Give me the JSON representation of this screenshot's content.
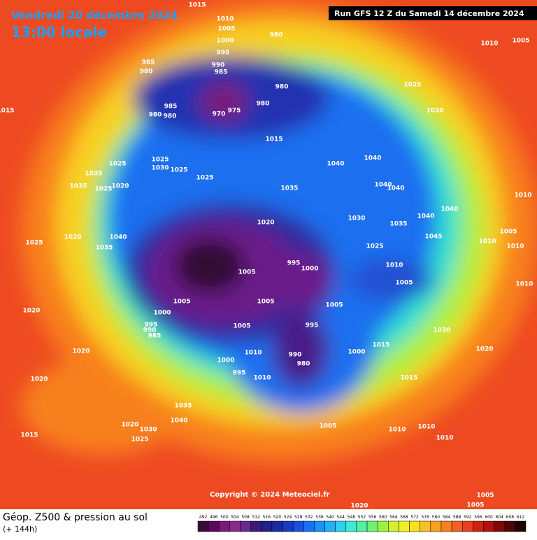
{
  "header": {
    "date": "Vendredi 20 décembre 2024",
    "time": "13:00 locale",
    "run": "Run GFS 12 Z du Samedi 14 décembre 2024"
  },
  "footer": {
    "title": "Géop. Z500 & pression au sol",
    "lead": "(+ 144h)",
    "copyright": "Copyright © 2024 Meteociel.fr"
  },
  "legend": {
    "values": [
      492,
      496,
      500,
      504,
      508,
      512,
      516,
      520,
      524,
      528,
      532,
      536,
      540,
      544,
      548,
      552,
      556,
      560,
      564,
      568,
      572,
      576,
      580,
      584,
      588,
      592,
      596,
      600,
      604,
      608,
      612
    ],
    "colors": [
      "#3a0a3a",
      "#5a0a5a",
      "#7a1a7a",
      "#8a2a8a",
      "#6a2a8a",
      "#3a1a7a",
      "#20208a",
      "#1a2aa0",
      "#1a3ac0",
      "#1a50e0",
      "#1a70f0",
      "#1a90f8",
      "#20b0f8",
      "#30d0f0",
      "#40e8d8",
      "#50f0a0",
      "#70f070",
      "#a0f040",
      "#d0f030",
      "#f0f020",
      "#f8e020",
      "#f8c020",
      "#f8a020",
      "#f88020",
      "#f06020",
      "#e84020",
      "#d02010",
      "#b01010",
      "#800808",
      "#500404",
      "#200000"
    ]
  },
  "isobars": [
    "1015",
    "1010",
    "1005",
    "1000",
    "995",
    "990",
    "985",
    "980",
    "985",
    "980",
    "985",
    "980",
    "980",
    "970",
    "975",
    "980",
    "980",
    "1010",
    "1005",
    "1025",
    "1020",
    "1015",
    "1015",
    "1040",
    "1040",
    "1025",
    "1025",
    "1030",
    "1025",
    "1035",
    "1025",
    "1020",
    "1035",
    "1025",
    "1035",
    "1040",
    "1040",
    "1030",
    "1035",
    "1040",
    "1040",
    "1010",
    "1020",
    "1045",
    "1005",
    "1010",
    "1010",
    "1040",
    "1025",
    "1020",
    "1035",
    "1025",
    "995",
    "1000",
    "1010",
    "1005",
    "1005",
    "1010",
    "1005",
    "1005",
    "1005",
    "1000",
    "1020",
    "995",
    "990",
    "985",
    "995",
    "1005",
    "1015",
    "1030",
    "1020",
    "1010",
    "1000",
    "990",
    "980",
    "1020",
    "1000",
    "995",
    "1010",
    "1015",
    "1020",
    "1035",
    "1040",
    "1020",
    "1030",
    "1025",
    "1015",
    "1005",
    "1010",
    "1010",
    "1010",
    "1020",
    "1005",
    "1005"
  ]
}
